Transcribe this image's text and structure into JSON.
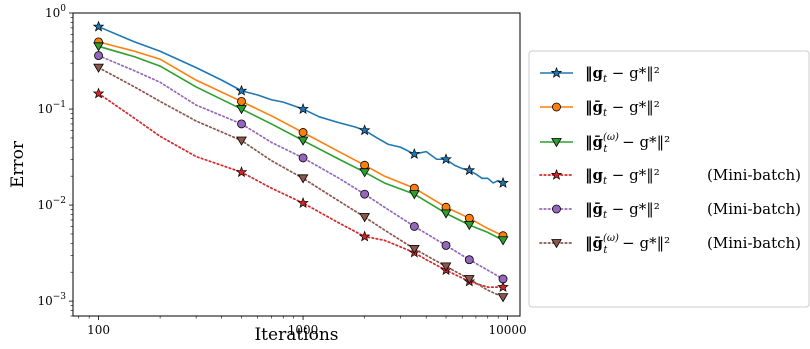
{
  "chart_data": {
    "type": "line",
    "xlabel": "Iterations",
    "ylabel": "Error",
    "xscale": "log",
    "yscale": "log",
    "xlim": [
      75,
      11500
    ],
    "ylim": [
      0.0007,
      1.0
    ],
    "xticks": [
      {
        "value": 100,
        "label": "100"
      },
      {
        "value": 1000,
        "label": "1000"
      },
      {
        "value": 10000,
        "label": "10000"
      }
    ],
    "yticks": [
      {
        "value": 1,
        "base": "10",
        "exp": "0"
      },
      {
        "value": 0.1,
        "base": "10",
        "exp": "−1"
      },
      {
        "value": 0.01,
        "base": "10",
        "exp": "−2"
      },
      {
        "value": 0.001,
        "base": "10",
        "exp": "−3"
      }
    ],
    "grid": false,
    "legend_position": "right",
    "series": [
      {
        "name": "‖g_t − g*‖²",
        "legend_main": "‖g",
        "legend_sub": "t",
        "legend_tail": " − g*‖²",
        "legend_suffix": "",
        "color": "#1f77b4",
        "style": "solid",
        "marker": "star",
        "x": [
          100,
          150,
          200,
          300,
          400,
          500,
          600,
          700,
          800,
          1000,
          1200,
          1500,
          1800,
          2000,
          2300,
          2600,
          3000,
          3500,
          4000,
          4500,
          5000,
          5500,
          6000,
          6500,
          7000,
          7500,
          8000,
          8500,
          9000,
          9500
        ],
        "y": [
          0.72,
          0.5,
          0.4,
          0.27,
          0.2,
          0.155,
          0.14,
          0.125,
          0.118,
          0.1,
          0.083,
          0.072,
          0.065,
          0.06,
          0.05,
          0.043,
          0.04,
          0.034,
          0.036,
          0.03,
          0.03,
          0.026,
          0.024,
          0.023,
          0.021,
          0.019,
          0.019,
          0.017,
          0.018,
          0.017
        ],
        "markers_x": [
          100,
          500,
          1000,
          2000,
          3500,
          5000,
          6500,
          9500
        ],
        "markers_y": [
          0.72,
          0.155,
          0.1,
          0.06,
          0.034,
          0.03,
          0.023,
          0.017
        ]
      },
      {
        "name": "‖ḡ_t − g*‖²",
        "legend_main": "‖ḡ",
        "legend_sub": "t",
        "legend_tail": " − g*‖²",
        "legend_suffix": "",
        "color": "#ff7f0e",
        "style": "solid",
        "marker": "circle",
        "x": [
          100,
          150,
          200,
          300,
          500,
          700,
          1000,
          1500,
          2000,
          2500,
          3500,
          5000,
          6500,
          8000,
          9500
        ],
        "y": [
          0.5,
          0.4,
          0.33,
          0.2,
          0.12,
          0.085,
          0.057,
          0.036,
          0.026,
          0.02,
          0.015,
          0.0095,
          0.0073,
          0.0057,
          0.0048
        ],
        "markers_x": [
          100,
          500,
          1000,
          2000,
          3500,
          5000,
          6500,
          9500
        ],
        "markers_y": [
          0.5,
          0.12,
          0.057,
          0.026,
          0.015,
          0.0095,
          0.0073,
          0.0048
        ]
      },
      {
        "name": "‖ḡ_t^(ω) − g*‖²",
        "legend_main": "‖ḡ",
        "legend_sub": "t",
        "legend_sup": "(ω)",
        "legend_tail": " − g*‖²",
        "legend_suffix": "",
        "color": "#2ca02c",
        "style": "solid",
        "marker": "triangle_down",
        "x": [
          100,
          150,
          200,
          300,
          500,
          700,
          1000,
          1500,
          2000,
          2500,
          3500,
          5000,
          6500,
          8000,
          9500
        ],
        "y": [
          0.45,
          0.35,
          0.28,
          0.17,
          0.1,
          0.07,
          0.047,
          0.03,
          0.022,
          0.017,
          0.013,
          0.0082,
          0.0062,
          0.0052,
          0.0043
        ],
        "markers_x": [
          100,
          500,
          1000,
          2000,
          3500,
          5000,
          6500,
          9500
        ],
        "markers_y": [
          0.45,
          0.1,
          0.047,
          0.022,
          0.013,
          0.0082,
          0.0062,
          0.0043
        ]
      },
      {
        "name": "‖g_t − g*‖² (Mini-batch)",
        "legend_main": "‖g",
        "legend_sub": "t",
        "legend_tail": " − g*‖²",
        "legend_suffix": "(Mini-batch)",
        "color": "#d62728",
        "style": "dotted",
        "marker": "star",
        "x": [
          100,
          150,
          200,
          300,
          500,
          700,
          1000,
          1500,
          2000,
          2500,
          3500,
          4000,
          5000,
          6500,
          8000,
          9500
        ],
        "y": [
          0.145,
          0.08,
          0.052,
          0.032,
          0.022,
          0.015,
          0.0105,
          0.0065,
          0.0047,
          0.0043,
          0.0032,
          0.0027,
          0.0021,
          0.0016,
          0.0014,
          0.0014
        ],
        "markers_x": [
          100,
          500,
          1000,
          2000,
          3500,
          5000,
          6500,
          9500
        ],
        "markers_y": [
          0.145,
          0.022,
          0.0105,
          0.0047,
          0.0032,
          0.0021,
          0.0016,
          0.0014
        ]
      },
      {
        "name": "‖ḡ_t − g*‖² (Mini-batch)",
        "legend_main": "‖ḡ",
        "legend_sub": "t",
        "legend_tail": " − g*‖²",
        "legend_suffix": "(Mini-batch)",
        "color": "#9467bd",
        "style": "dotted",
        "marker": "circle",
        "x": [
          100,
          150,
          200,
          300,
          500,
          700,
          1000,
          1500,
          2000,
          2500,
          3500,
          5000,
          6500,
          8000,
          9500
        ],
        "y": [
          0.36,
          0.25,
          0.19,
          0.11,
          0.07,
          0.045,
          0.031,
          0.019,
          0.013,
          0.0095,
          0.006,
          0.0038,
          0.0027,
          0.0021,
          0.0017
        ],
        "markers_x": [
          100,
          500,
          1000,
          2000,
          3500,
          5000,
          6500,
          9500
        ],
        "markers_y": [
          0.36,
          0.07,
          0.031,
          0.013,
          0.006,
          0.0038,
          0.0027,
          0.0017
        ]
      },
      {
        "name": "‖ḡ_t^(ω) − g*‖² (Mini-batch)",
        "legend_main": "‖ḡ",
        "legend_sub": "t",
        "legend_sup": "(ω)",
        "legend_tail": " − g*‖²",
        "legend_suffix": "(Mini-batch)",
        "color": "#8c564b",
        "style": "dotted",
        "marker": "triangle_down",
        "x": [
          100,
          150,
          200,
          300,
          500,
          700,
          1000,
          1500,
          2000,
          2500,
          3500,
          5000,
          6500,
          8000,
          9500
        ],
        "y": [
          0.27,
          0.17,
          0.12,
          0.075,
          0.047,
          0.029,
          0.019,
          0.011,
          0.0075,
          0.0055,
          0.0035,
          0.0023,
          0.0017,
          0.0013,
          0.0011
        ],
        "markers_x": [
          100,
          500,
          1000,
          2000,
          3500,
          5000,
          6500,
          9500
        ],
        "markers_y": [
          0.27,
          0.047,
          0.019,
          0.0075,
          0.0035,
          0.0023,
          0.0017,
          0.0011
        ]
      }
    ]
  }
}
